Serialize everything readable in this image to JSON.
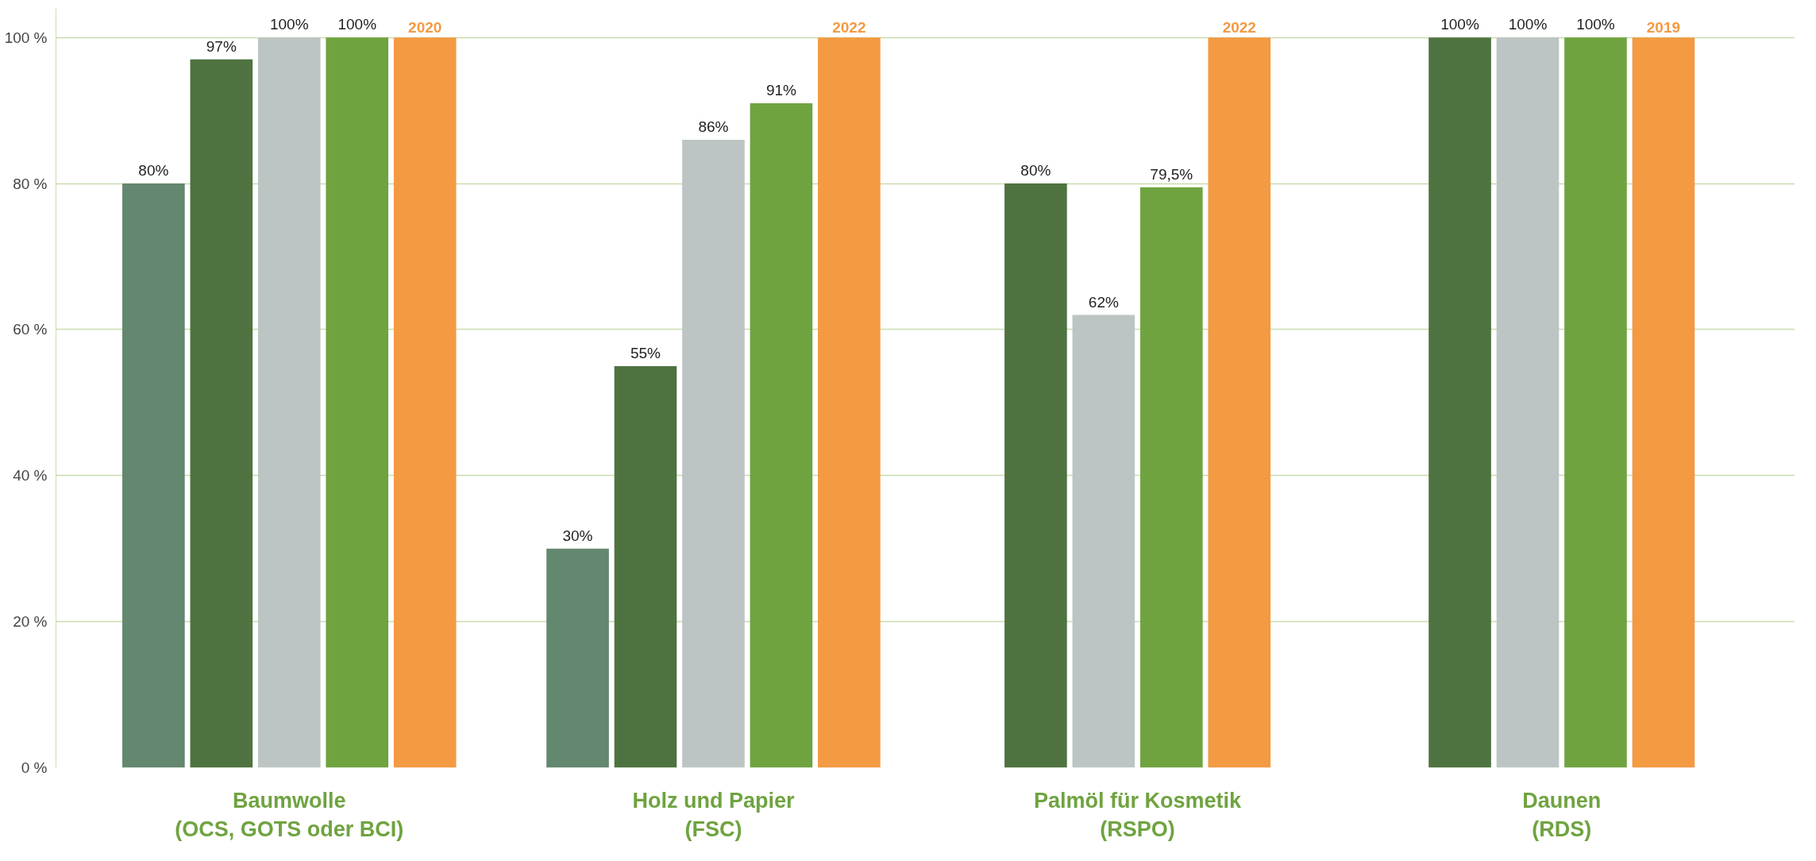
{
  "chart_data": {
    "type": "bar",
    "categories": [
      "Baumwolle\n(OCS, GOTS oder BCI)",
      "Holz und Papier\n(FSC)",
      "Palmöl für Kosmetik\n(RSPO)",
      "Daunen\n(RDS)"
    ],
    "series": [
      {
        "color": "#63876f",
        "values": [
          80,
          30,
          null,
          null
        ],
        "value_labels": [
          "80%",
          "30%",
          null,
          null
        ]
      },
      {
        "color": "#4f7340",
        "values": [
          97,
          55,
          80,
          100
        ],
        "value_labels": [
          "97%",
          "55%",
          "80%",
          "100%"
        ]
      },
      {
        "color": "#bcc5c3",
        "values": [
          100,
          86,
          62,
          100
        ],
        "value_labels": [
          "100%",
          "86%",
          "62%",
          "100%"
        ]
      },
      {
        "color": "#6fa340",
        "values": [
          100,
          91,
          79.5,
          100
        ],
        "value_labels": [
          "100%",
          "91%",
          "79,5%",
          "100%"
        ]
      },
      {
        "color": "#f39a42",
        "values": [
          100,
          100,
          100,
          100
        ]
      }
    ],
    "annotations": [
      "2020",
      "2022",
      "2022",
      "2019"
    ],
    "ylim": [
      0,
      104
    ],
    "yticks": [
      {
        "value": 0,
        "label": "0 %"
      },
      {
        "value": 20,
        "label": "20 %"
      },
      {
        "value": 40,
        "label": "40 %"
      },
      {
        "value": 60,
        "label": "60 %"
      },
      {
        "value": 80,
        "label": "80 %"
      },
      {
        "value": 100,
        "label": "100 %"
      }
    ],
    "grid": "y"
  }
}
